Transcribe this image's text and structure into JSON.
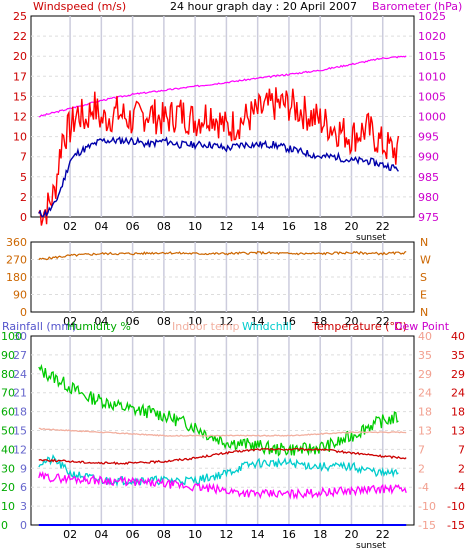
{
  "chart_data": [
    {
      "type": "line",
      "title": "24 hour graph day : 20 April 2007",
      "x_ticks": [
        "02",
        "04",
        "06",
        "08",
        "10",
        "12",
        "14",
        "16",
        "18",
        "20",
        "22"
      ],
      "x_annotation": "sunset",
      "left_axis": {
        "label": "Windspeed (m/s)",
        "range": [
          0,
          25
        ],
        "ticks": [
          "0",
          "2",
          "5",
          "7",
          "10",
          "12",
          "15",
          "17",
          "20",
          "22",
          "25"
        ]
      },
      "right_axis": {
        "label": "Barometer (hPa)",
        "range": [
          975,
          1025
        ],
        "ticks": [
          "975",
          "980",
          "985",
          "990",
          "995",
          "1000",
          "1005",
          "1010",
          "1015",
          "1020",
          "1025"
        ]
      },
      "series": [
        {
          "name": "Windspeed (m/s)",
          "color": "#ff0000",
          "axis": "left",
          "x": [
            0,
            0.5,
            1,
            1.5,
            2,
            2.5,
            3,
            3.5,
            4,
            5,
            6,
            7,
            8,
            9,
            10,
            11,
            12,
            13,
            14,
            15,
            16,
            17,
            18,
            19,
            20,
            21,
            22,
            23
          ],
          "values": [
            0.5,
            1,
            3,
            10,
            11,
            13,
            12,
            14,
            12,
            13,
            12,
            13,
            12,
            13,
            12,
            13,
            11,
            12,
            13,
            14,
            14,
            13,
            12,
            11,
            10,
            11,
            9,
            8
          ]
        },
        {
          "name": "Wind average",
          "color": "#0000aa",
          "axis": "left",
          "x": [
            0,
            0.5,
            1,
            1.5,
            2,
            2.5,
            3,
            3.5,
            4,
            5,
            6,
            7,
            8,
            9,
            10,
            11,
            12,
            13,
            14,
            15,
            16,
            17,
            18,
            19,
            20,
            21,
            22,
            23
          ],
          "values": [
            0.3,
            0.5,
            1.5,
            4,
            7,
            8,
            8.5,
            9,
            9.5,
            9.5,
            9.5,
            9,
            9.5,
            9,
            9,
            9,
            8.5,
            9,
            9,
            9,
            8.5,
            8,
            7.5,
            7.5,
            7,
            7,
            6.5,
            6
          ]
        },
        {
          "name": "Barometer (hPa)",
          "color": "#ff00ff",
          "axis": "right",
          "x": [
            0,
            2,
            4,
            6,
            8,
            10,
            12,
            14,
            16,
            18,
            20,
            22,
            23.5
          ],
          "values": [
            1000,
            1002,
            1004,
            1005.5,
            1006.5,
            1007.5,
            1008.5,
            1009.5,
            1010.5,
            1011.5,
            1013,
            1014.5,
            1015
          ]
        }
      ]
    },
    {
      "type": "line",
      "x_ticks": [
        "02",
        "04",
        "06",
        "08",
        "10",
        "12",
        "14",
        "16",
        "18",
        "20",
        "22"
      ],
      "left_axis": {
        "range": [
          0,
          360
        ],
        "ticks": [
          "0",
          "90",
          "180",
          "270",
          "360"
        ]
      },
      "right_axis": {
        "ticks": [
          "N",
          "E",
          "S",
          "W",
          "N"
        ]
      },
      "series": [
        {
          "name": "Wind direction",
          "color": "#cc6600",
          "x": [
            0,
            2,
            4,
            6,
            8,
            10,
            12,
            14,
            16,
            18,
            20,
            22,
            23.5
          ],
          "values": [
            270,
            290,
            300,
            300,
            305,
            300,
            300,
            305,
            300,
            300,
            305,
            300,
            305
          ]
        }
      ]
    },
    {
      "type": "line",
      "x_ticks": [
        "02",
        "04",
        "06",
        "08",
        "10",
        "12",
        "14",
        "16",
        "18",
        "20",
        "22"
      ],
      "x_annotation": "sunset",
      "legend": [
        "Rainfall (mm)",
        "Humidity %",
        "Indoor temp",
        "Windchill",
        "Temperature (°C)",
        "Dew Point"
      ],
      "left_axis_rain": {
        "label": "Rainfall (mm)",
        "ticks": [
          "0",
          "3",
          "6",
          "9",
          "12",
          "15",
          "18",
          "21",
          "24",
          "27",
          "30"
        ]
      },
      "left_axis_humidity": {
        "label": "Humidity %",
        "ticks": [
          "0",
          "10",
          "20",
          "30",
          "40",
          "50",
          "60",
          "70",
          "80",
          "90",
          "100"
        ]
      },
      "right_axis_temp_outer": {
        "ticks": [
          "-15",
          "-10",
          "-4",
          "2",
          "7",
          "13",
          "18",
          "24",
          "29",
          "35",
          "40"
        ]
      },
      "right_axis_temp_inner": {
        "ticks": [
          "-15",
          "-10",
          "-4",
          "2",
          "7",
          "13",
          "18",
          "24",
          "29",
          "35",
          "40"
        ]
      },
      "series": [
        {
          "name": "Humidity %",
          "color": "#00cc00",
          "axis": "humidity",
          "x": [
            0,
            1,
            2,
            3,
            4,
            5,
            6,
            7,
            8,
            9,
            10,
            11,
            12,
            13,
            14,
            15,
            16,
            17,
            18,
            19,
            20,
            21,
            22,
            23
          ],
          "values": [
            82,
            78,
            73,
            68,
            66,
            63,
            61,
            60,
            58,
            55,
            52,
            47,
            44,
            43,
            42,
            40,
            40,
            40,
            41,
            43,
            47,
            52,
            55,
            57
          ]
        },
        {
          "name": "Indoor temp",
          "color": "#f2b0a0",
          "axis": "temp",
          "x": [
            0,
            4,
            8,
            12,
            16,
            20,
            23.5
          ],
          "values": [
            13,
            12,
            11,
            11,
            11,
            12,
            12
          ]
        },
        {
          "name": "Windchill",
          "color": "#00cccc",
          "axis": "temp",
          "x": [
            0,
            1,
            2,
            3,
            4,
            5,
            6,
            8,
            10,
            12,
            13,
            14,
            15,
            16,
            18,
            20,
            22,
            23
          ],
          "values": [
            3,
            4,
            0,
            -1,
            -2,
            -2,
            -2,
            -2,
            -2,
            0,
            2,
            3,
            3,
            3,
            2,
            2,
            0,
            0
          ]
        },
        {
          "name": "Temperature (°C)",
          "color": "#cc0000",
          "axis": "temp",
          "x": [
            0,
            2,
            4,
            6,
            8,
            10,
            12,
            14,
            16,
            18,
            20,
            22,
            23.5
          ],
          "values": [
            4,
            3.5,
            3,
            3,
            3.5,
            4.5,
            6,
            7,
            7,
            7,
            6,
            5,
            4.5
          ]
        },
        {
          "name": "Dew Point",
          "color": "#ff00ff",
          "axis": "temp",
          "x": [
            0,
            2,
            4,
            6,
            8,
            10,
            12,
            14,
            16,
            18,
            20,
            22,
            23.5
          ],
          "values": [
            -1,
            -1.5,
            -2,
            -2.5,
            -3,
            -4,
            -5,
            -6,
            -6,
            -5.5,
            -5,
            -4.5,
            -4.5
          ]
        },
        {
          "name": "Rainfall (mm)",
          "color": "#0000ff",
          "axis": "rain",
          "x": [
            0,
            23.5
          ],
          "values": [
            0,
            0
          ]
        }
      ]
    }
  ]
}
